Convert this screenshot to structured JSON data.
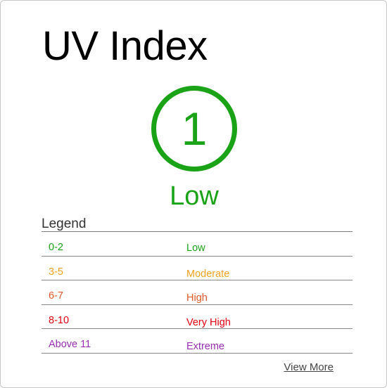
{
  "card": {
    "title": "UV Index",
    "uv_value": "1",
    "uv_level": "Low",
    "uv_color": "#1aa317"
  },
  "legend": {
    "title": "Legend",
    "rows": [
      {
        "range": "0-2",
        "label": "Low",
        "color": "#1aa317"
      },
      {
        "range": "3-5",
        "label": "Moderate",
        "color": "#f2a11e"
      },
      {
        "range": "6-7",
        "label": "High",
        "color": "#e0582b"
      },
      {
        "range": "8-10",
        "label": "Very High",
        "color": "#e3000f"
      },
      {
        "range": "Above 11",
        "label": "Extreme",
        "color": "#9a2cb5"
      }
    ]
  },
  "links": {
    "view_more": "View More"
  }
}
